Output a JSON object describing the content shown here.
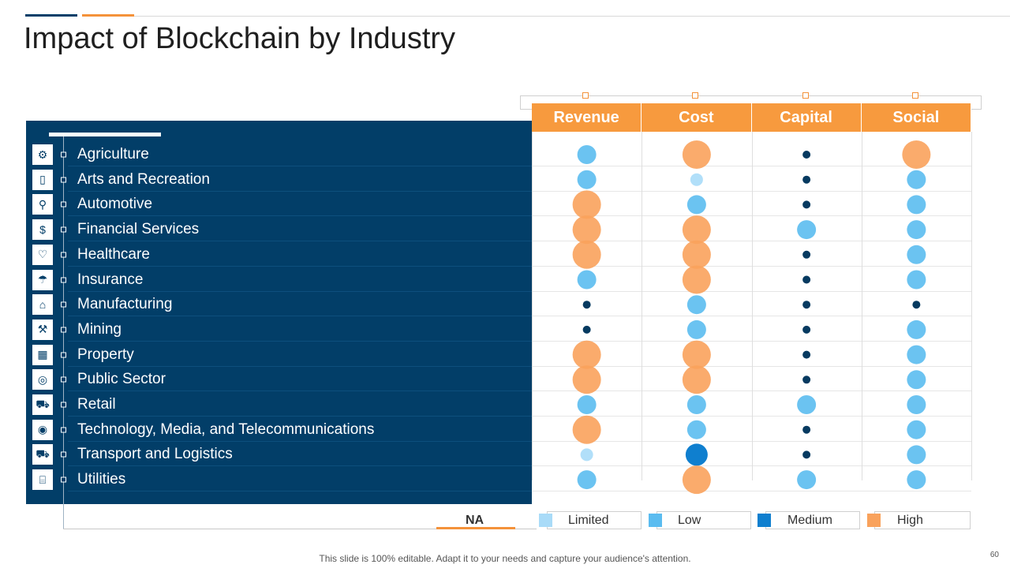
{
  "title": "Impact of Blockchain by Industry",
  "footer": "This slide is 100% editable. Adapt it to your needs and capture your audience's attention.",
  "page_number": "60",
  "colors": {
    "navy": "#023e68",
    "orange": "#f79a3e",
    "limited": "#a9dbf8",
    "low": "#5bbcf0",
    "medium": "#0f7fcf",
    "high": "#f9a25c",
    "na": "#063a60"
  },
  "chart_data": {
    "type": "table",
    "title": "Impact of Blockchain by Industry",
    "columns": [
      "Revenue",
      "Cost",
      "Capital",
      "Social"
    ],
    "rows": [
      {
        "industry": "Agriculture",
        "icon": "tractor-icon",
        "values": [
          "Low",
          "High",
          "NA",
          "High"
        ]
      },
      {
        "industry": "Arts and Recreation",
        "icon": "swing-icon",
        "values": [
          "Low",
          "Limited",
          "NA",
          "Low"
        ]
      },
      {
        "industry": "Automotive",
        "icon": "car-parts-icon",
        "values": [
          "High",
          "Low",
          "NA",
          "Low"
        ]
      },
      {
        "industry": "Financial Services",
        "icon": "dollar-gear-icon",
        "values": [
          "High",
          "High",
          "Low",
          "Low"
        ]
      },
      {
        "industry": "Healthcare",
        "icon": "heart-hand-icon",
        "values": [
          "High",
          "High",
          "NA",
          "Low"
        ]
      },
      {
        "industry": "Insurance",
        "icon": "umbrella-icon",
        "values": [
          "Low",
          "High",
          "NA",
          "Low"
        ]
      },
      {
        "industry": "Manufacturing",
        "icon": "robot-arm-icon",
        "values": [
          "NA",
          "Low",
          "NA",
          "NA"
        ]
      },
      {
        "industry": "Mining",
        "icon": "pickaxe-icon",
        "values": [
          "NA",
          "Low",
          "NA",
          "Low"
        ]
      },
      {
        "industry": "Property",
        "icon": "building-icon",
        "values": [
          "High",
          "High",
          "NA",
          "Low"
        ]
      },
      {
        "industry": "Public Sector",
        "icon": "public-icon",
        "values": [
          "High",
          "High",
          "NA",
          "Low"
        ]
      },
      {
        "industry": "Retail",
        "icon": "shopping-cart-icon",
        "values": [
          "Low",
          "Low",
          "Low",
          "Low"
        ]
      },
      {
        "industry": "Technology, Media, and Telecommunications",
        "icon": "satellite-icon",
        "values": [
          "High",
          "Low",
          "NA",
          "Low"
        ]
      },
      {
        "industry": "Transport and Logistics",
        "icon": "truck-icon",
        "values": [
          "Limited",
          "Medium",
          "NA",
          "Low"
        ]
      },
      {
        "industry": "Utilities",
        "icon": "power-plant-icon",
        "values": [
          "Low",
          "High",
          "Low",
          "Low"
        ]
      }
    ],
    "legend": [
      {
        "label": "NA",
        "key": "na"
      },
      {
        "label": "Limited",
        "key": "limited"
      },
      {
        "label": "Low",
        "key": "low"
      },
      {
        "label": "Medium",
        "key": "medium"
      },
      {
        "label": "High",
        "key": "high"
      }
    ]
  }
}
